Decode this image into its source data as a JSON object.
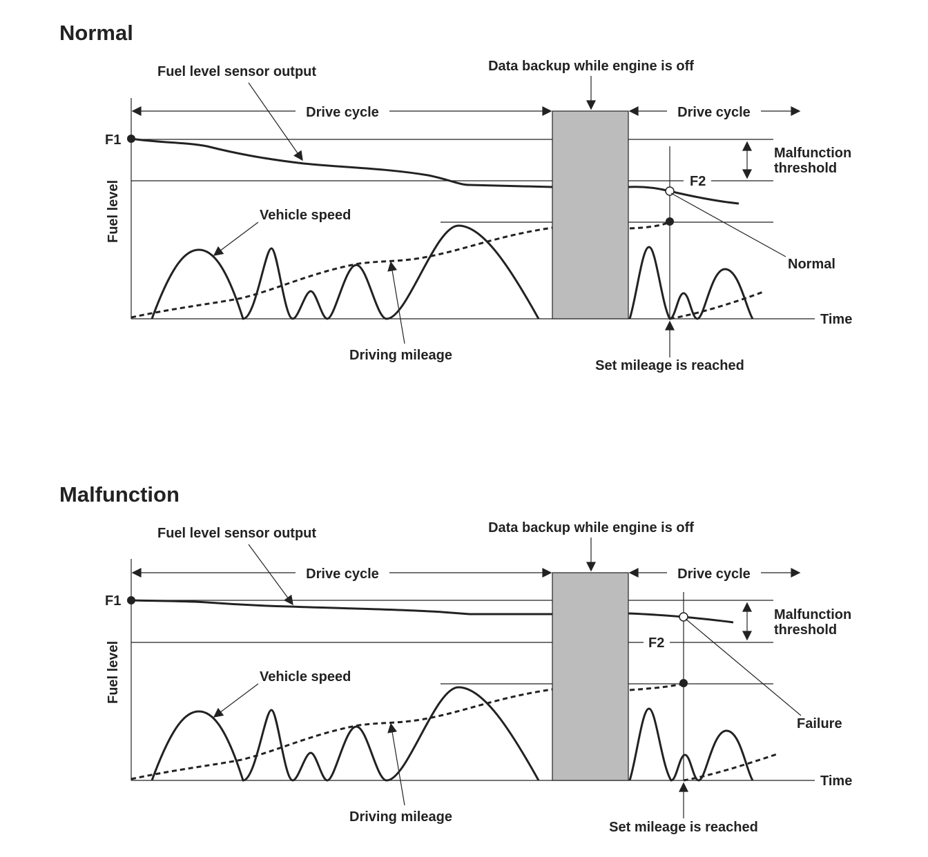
{
  "colors": {
    "ink": "#222222",
    "backup_block": "#bcbcbc",
    "background": "#ffffff"
  },
  "panels": [
    {
      "title": "Normal",
      "fuel_sensor_label": "Fuel level sensor output",
      "backup_label": "Data backup while engine is off",
      "drive_cycle_label": "Drive cycle",
      "drive_cycle_label_2": "Drive cycle",
      "f1_label": "F1",
      "f2_label": "F2",
      "y_axis_label": "Fuel level",
      "threshold_label_line1": "Malfunction",
      "threshold_label_line2": "threshold",
      "vehicle_speed_label": "Vehicle speed",
      "driving_mileage_label": "Driving mileage",
      "time_label": "Time",
      "set_mileage_label": "Set mileage is reached",
      "result_label": "Normal"
    },
    {
      "title": "Malfunction",
      "fuel_sensor_label": "Fuel level sensor output",
      "backup_label": "Data backup while engine is off",
      "drive_cycle_label": "Drive cycle",
      "drive_cycle_label_2": "Drive cycle",
      "f1_label": "F1",
      "f2_label": "F2",
      "y_axis_label": "Fuel level",
      "threshold_label_line1": "Malfunction",
      "threshold_label_line2": "threshold",
      "vehicle_speed_label": "Vehicle speed",
      "driving_mileage_label": "Driving mileage",
      "time_label": "Time",
      "set_mileage_label": "Set mileage is reached",
      "result_label": "Failure"
    }
  ]
}
